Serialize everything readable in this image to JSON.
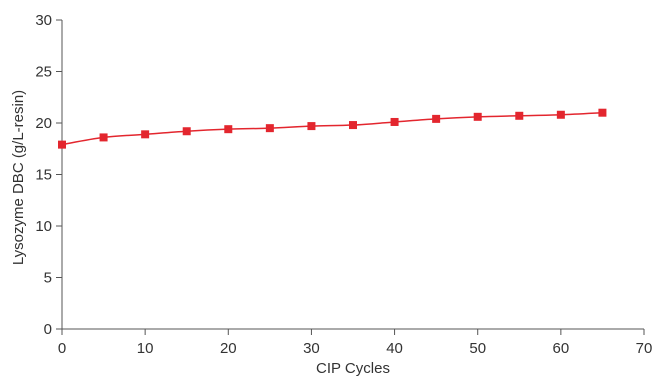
{
  "chart_data": {
    "type": "line",
    "xlabel": "CIP Cycles",
    "ylabel": "Lysozyme DBC (g/L-resin)",
    "xlim": [
      0,
      70
    ],
    "ylim": [
      0,
      30
    ],
    "x_ticks": [
      0,
      10,
      20,
      30,
      40,
      50,
      60,
      70
    ],
    "y_ticks": [
      0,
      5,
      10,
      15,
      20,
      25,
      30
    ],
    "x_tick_labels": [
      "0",
      "10",
      "20",
      "30",
      "40",
      "50",
      "60",
      "70"
    ],
    "y_tick_labels": [
      "0",
      "5",
      "10",
      "15",
      "20",
      "25",
      "30"
    ],
    "grid": false,
    "legend": "none",
    "series": [
      {
        "x": [
          0,
          5,
          10,
          15,
          20,
          25,
          30,
          35,
          40,
          45,
          50,
          55,
          60,
          65
        ],
        "values": [
          17.9,
          18.6,
          18.9,
          19.2,
          19.4,
          19.5,
          19.7,
          19.8,
          20.1,
          20.4,
          20.6,
          20.7,
          20.8,
          21.0
        ],
        "color": "#e3262e",
        "marker": "square"
      }
    ]
  }
}
